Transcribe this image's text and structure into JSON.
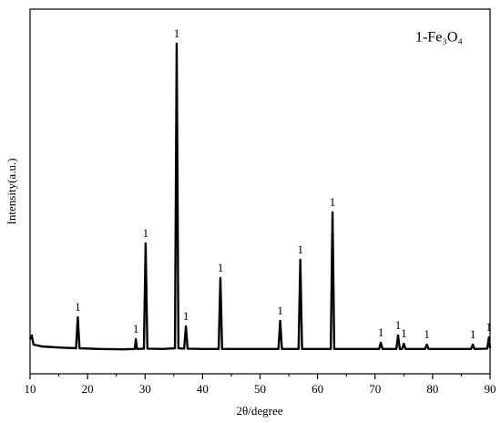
{
  "chart_data": {
    "type": "line",
    "xlabel": "2θ/degree",
    "ylabel": "Intensity(a.u.)",
    "legend_text": "1-Fe₃O₄",
    "x": [
      10,
      10.3,
      10.6,
      12,
      15,
      18.0,
      18.3,
      18.6,
      22,
      26,
      28.2,
      28.4,
      28.6,
      29.8,
      30.1,
      30.4,
      33,
      35.2,
      35.5,
      35.8,
      36.8,
      37.1,
      37.4,
      40,
      42.8,
      43.1,
      43.4,
      47,
      50,
      53.2,
      53.5,
      53.8,
      56.7,
      57.0,
      57.3,
      60,
      62.3,
      62.6,
      62.9,
      66,
      70.7,
      71.0,
      71.3,
      73.7,
      74.0,
      74.3,
      74.7,
      75.0,
      75.3,
      78.7,
      79.0,
      79.3,
      83,
      86.7,
      87.0,
      87.3,
      89.5,
      89.8,
      90
    ],
    "series": [
      {
        "color": "#000000",
        "values": [
          9.5,
          10.5,
          8,
          7.5,
          7.2,
          7,
          15.5,
          7,
          6.8,
          6.7,
          6.8,
          9.5,
          6.8,
          6.9,
          35.75,
          6.9,
          6.8,
          7,
          90.5,
          7,
          6.9,
          13,
          6.9,
          6.8,
          6.8,
          26.25,
          6.8,
          6.8,
          6.8,
          6.8,
          14.5,
          6.8,
          6.8,
          31.25,
          6.8,
          6.8,
          6.8,
          44.25,
          6.8,
          6.8,
          6.8,
          8.5,
          6.8,
          6.8,
          10.5,
          6.8,
          6.8,
          8.25,
          6.8,
          6.8,
          8,
          6.8,
          6.8,
          6.8,
          8,
          6.8,
          6.9,
          10,
          7
        ]
      }
    ],
    "annotations": [
      {
        "x": 18.3,
        "text": "1"
      },
      {
        "x": 28.4,
        "text": "1"
      },
      {
        "x": 30.1,
        "text": "1"
      },
      {
        "x": 35.5,
        "text": "1"
      },
      {
        "x": 37.1,
        "text": "1"
      },
      {
        "x": 43.1,
        "text": "1"
      },
      {
        "x": 53.5,
        "text": "1"
      },
      {
        "x": 57.0,
        "text": "1"
      },
      {
        "x": 62.6,
        "text": "1"
      },
      {
        "x": 71.0,
        "text": "1"
      },
      {
        "x": 74.0,
        "text": "1"
      },
      {
        "x": 75.0,
        "text": "1"
      },
      {
        "x": 79.0,
        "text": "1"
      },
      {
        "x": 87.0,
        "text": "1"
      },
      {
        "x": 89.8,
        "text": "1"
      }
    ],
    "xlim": [
      10,
      90
    ],
    "xticks": [
      10,
      20,
      30,
      40,
      50,
      60,
      70,
      80,
      90
    ],
    "xminorticks": [
      15,
      25,
      35,
      45,
      55,
      65,
      75,
      85
    ],
    "ylim": [
      0,
      100
    ]
  }
}
